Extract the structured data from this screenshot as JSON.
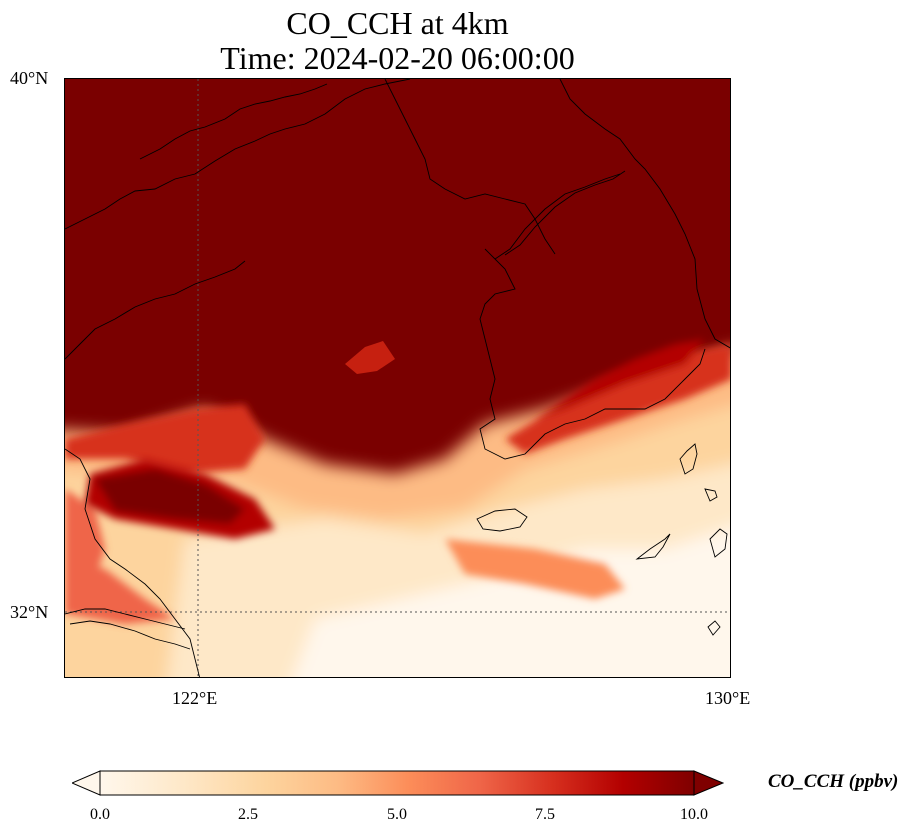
{
  "title": {
    "line1": "CO_CCH at 4km",
    "line2": "Time: 2024-02-20 06:00:00"
  },
  "map": {
    "variable": "CO_CCH",
    "level": "4km",
    "extent": {
      "lon_min": 118,
      "lon_max": 130,
      "lat_min": 30.8,
      "lat_max": 40
    },
    "gridlines": {
      "lon": [
        122
      ],
      "lat": [
        32
      ],
      "style": "dotted"
    },
    "lat_ticks": [
      "40°N",
      "32°N"
    ],
    "lon_ticks": [
      "122°E",
      "130°E"
    ],
    "features": [
      "coastlines"
    ]
  },
  "colorbar": {
    "label": "CO_CCH (ppbv)",
    "ticks": [
      "0.0",
      "2.5",
      "5.0",
      "7.5",
      "10.0"
    ],
    "vmin": 0,
    "vmax": 10,
    "extend": "both",
    "colormap": "OrRd",
    "colors": [
      "#fff7ec",
      "#fee8c8",
      "#fdd49e",
      "#fdbb84",
      "#fc8d59",
      "#ef6548",
      "#d7301f",
      "#b30000",
      "#7f0000"
    ]
  }
}
